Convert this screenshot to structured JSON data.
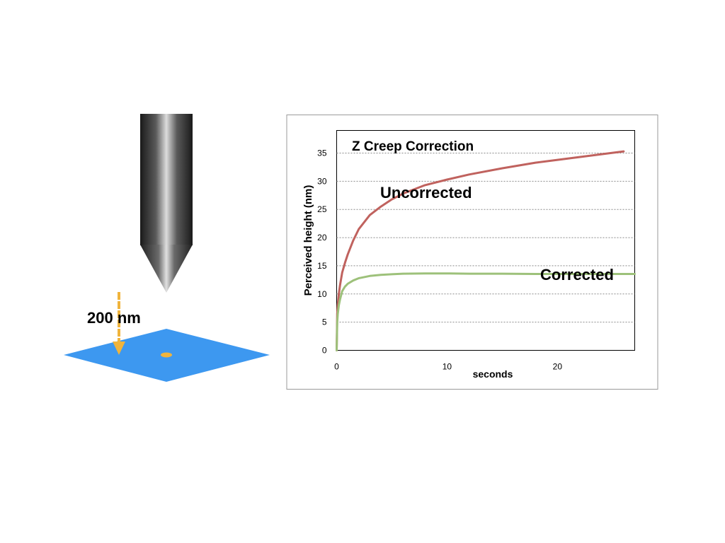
{
  "illustration": {
    "depth_label": "200 nm",
    "colors": {
      "sample_surface": "#3d98f0",
      "arrow": "#f0b43c",
      "particle": "#f0b43c",
      "probe_tip": "gray-metallic"
    },
    "icons": [
      "afm-probe-tip-icon",
      "sample-surface-icon",
      "down-arrow-icon"
    ]
  },
  "chart_data": {
    "type": "line",
    "title": "Z Creep Correction",
    "xlabel": "seconds",
    "ylabel": "Perceived height (nm)",
    "xlim": [
      0,
      27
    ],
    "ylim": [
      0,
      35
    ],
    "x_ticks": [
      "0",
      "10",
      "20"
    ],
    "y_ticks": [
      "0",
      "5",
      "10",
      "15",
      "20",
      "25",
      "30",
      "35"
    ],
    "grid": "horizontal dashed",
    "series": [
      {
        "name": "Uncorrected",
        "color": "#c0625e",
        "x": [
          0,
          0.05,
          0.1,
          0.2,
          0.3,
          0.5,
          0.75,
          1,
          1.5,
          2,
          3,
          4,
          5,
          6,
          8,
          10,
          12,
          15,
          18,
          20,
          22,
          24,
          26
        ],
        "y": [
          0,
          6.5,
          8,
          10,
          11.5,
          13.8,
          15.5,
          17,
          19.5,
          21.5,
          24,
          25.5,
          26.8,
          27.8,
          29.3,
          30.3,
          31.2,
          32.3,
          33.3,
          33.8,
          34.3,
          34.8,
          35.3
        ]
      },
      {
        "name": "Corrected",
        "color": "#9dc17a",
        "x": [
          0,
          0.05,
          0.1,
          0.2,
          0.3,
          0.5,
          0.75,
          1,
          1.5,
          2,
          3,
          4,
          5,
          6,
          8,
          10,
          12,
          15,
          18,
          20,
          22,
          24,
          26,
          27
        ],
        "y": [
          0,
          5,
          6.5,
          8,
          9,
          10.5,
          11.3,
          11.8,
          12.4,
          12.8,
          13.2,
          13.4,
          13.5,
          13.6,
          13.65,
          13.65,
          13.6,
          13.6,
          13.55,
          13.55,
          13.55,
          13.55,
          13.55,
          13.55
        ]
      }
    ]
  }
}
